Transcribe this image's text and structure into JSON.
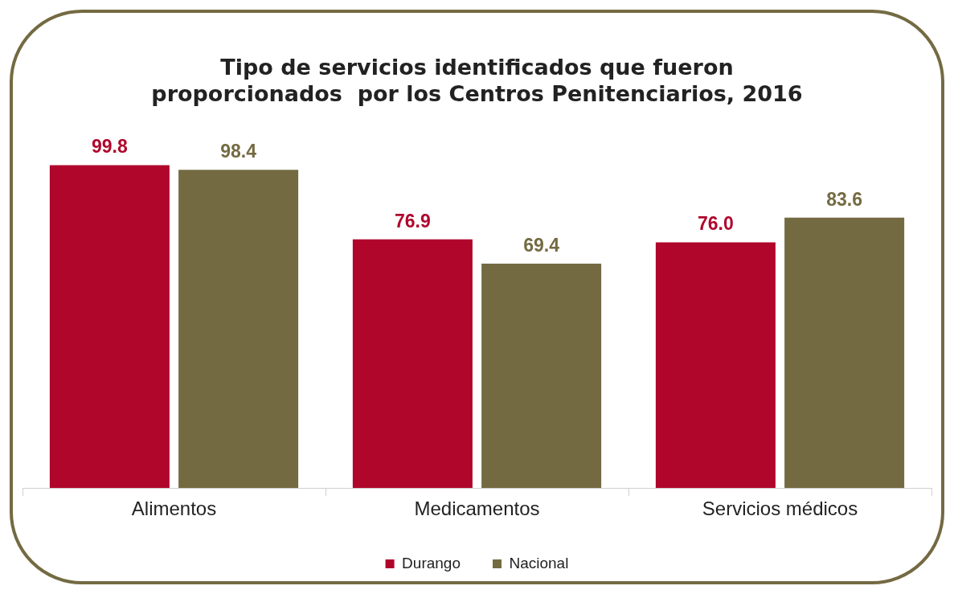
{
  "chart_data": {
    "type": "bar",
    "title": "Tipo de servicios identificados que fueron\nproporcionados  por los Centros Penitenciarios, 2016",
    "categories": [
      "Alimentos",
      "Medicamentos",
      "Servicios médicos"
    ],
    "series": [
      {
        "name": "Durango",
        "color": "#b0062c",
        "values": [
          99.8,
          76.9,
          76.0
        ],
        "value_labels": [
          "99.8",
          "76.9",
          "76.0"
        ]
      },
      {
        "name": "Nacional",
        "color": "#746a42",
        "values": [
          98.4,
          69.4,
          83.6
        ],
        "value_labels": [
          "98.4",
          "69.4",
          "83.6"
        ]
      }
    ],
    "legend": "bottom",
    "grid": false,
    "tick_labels": "x"
  }
}
